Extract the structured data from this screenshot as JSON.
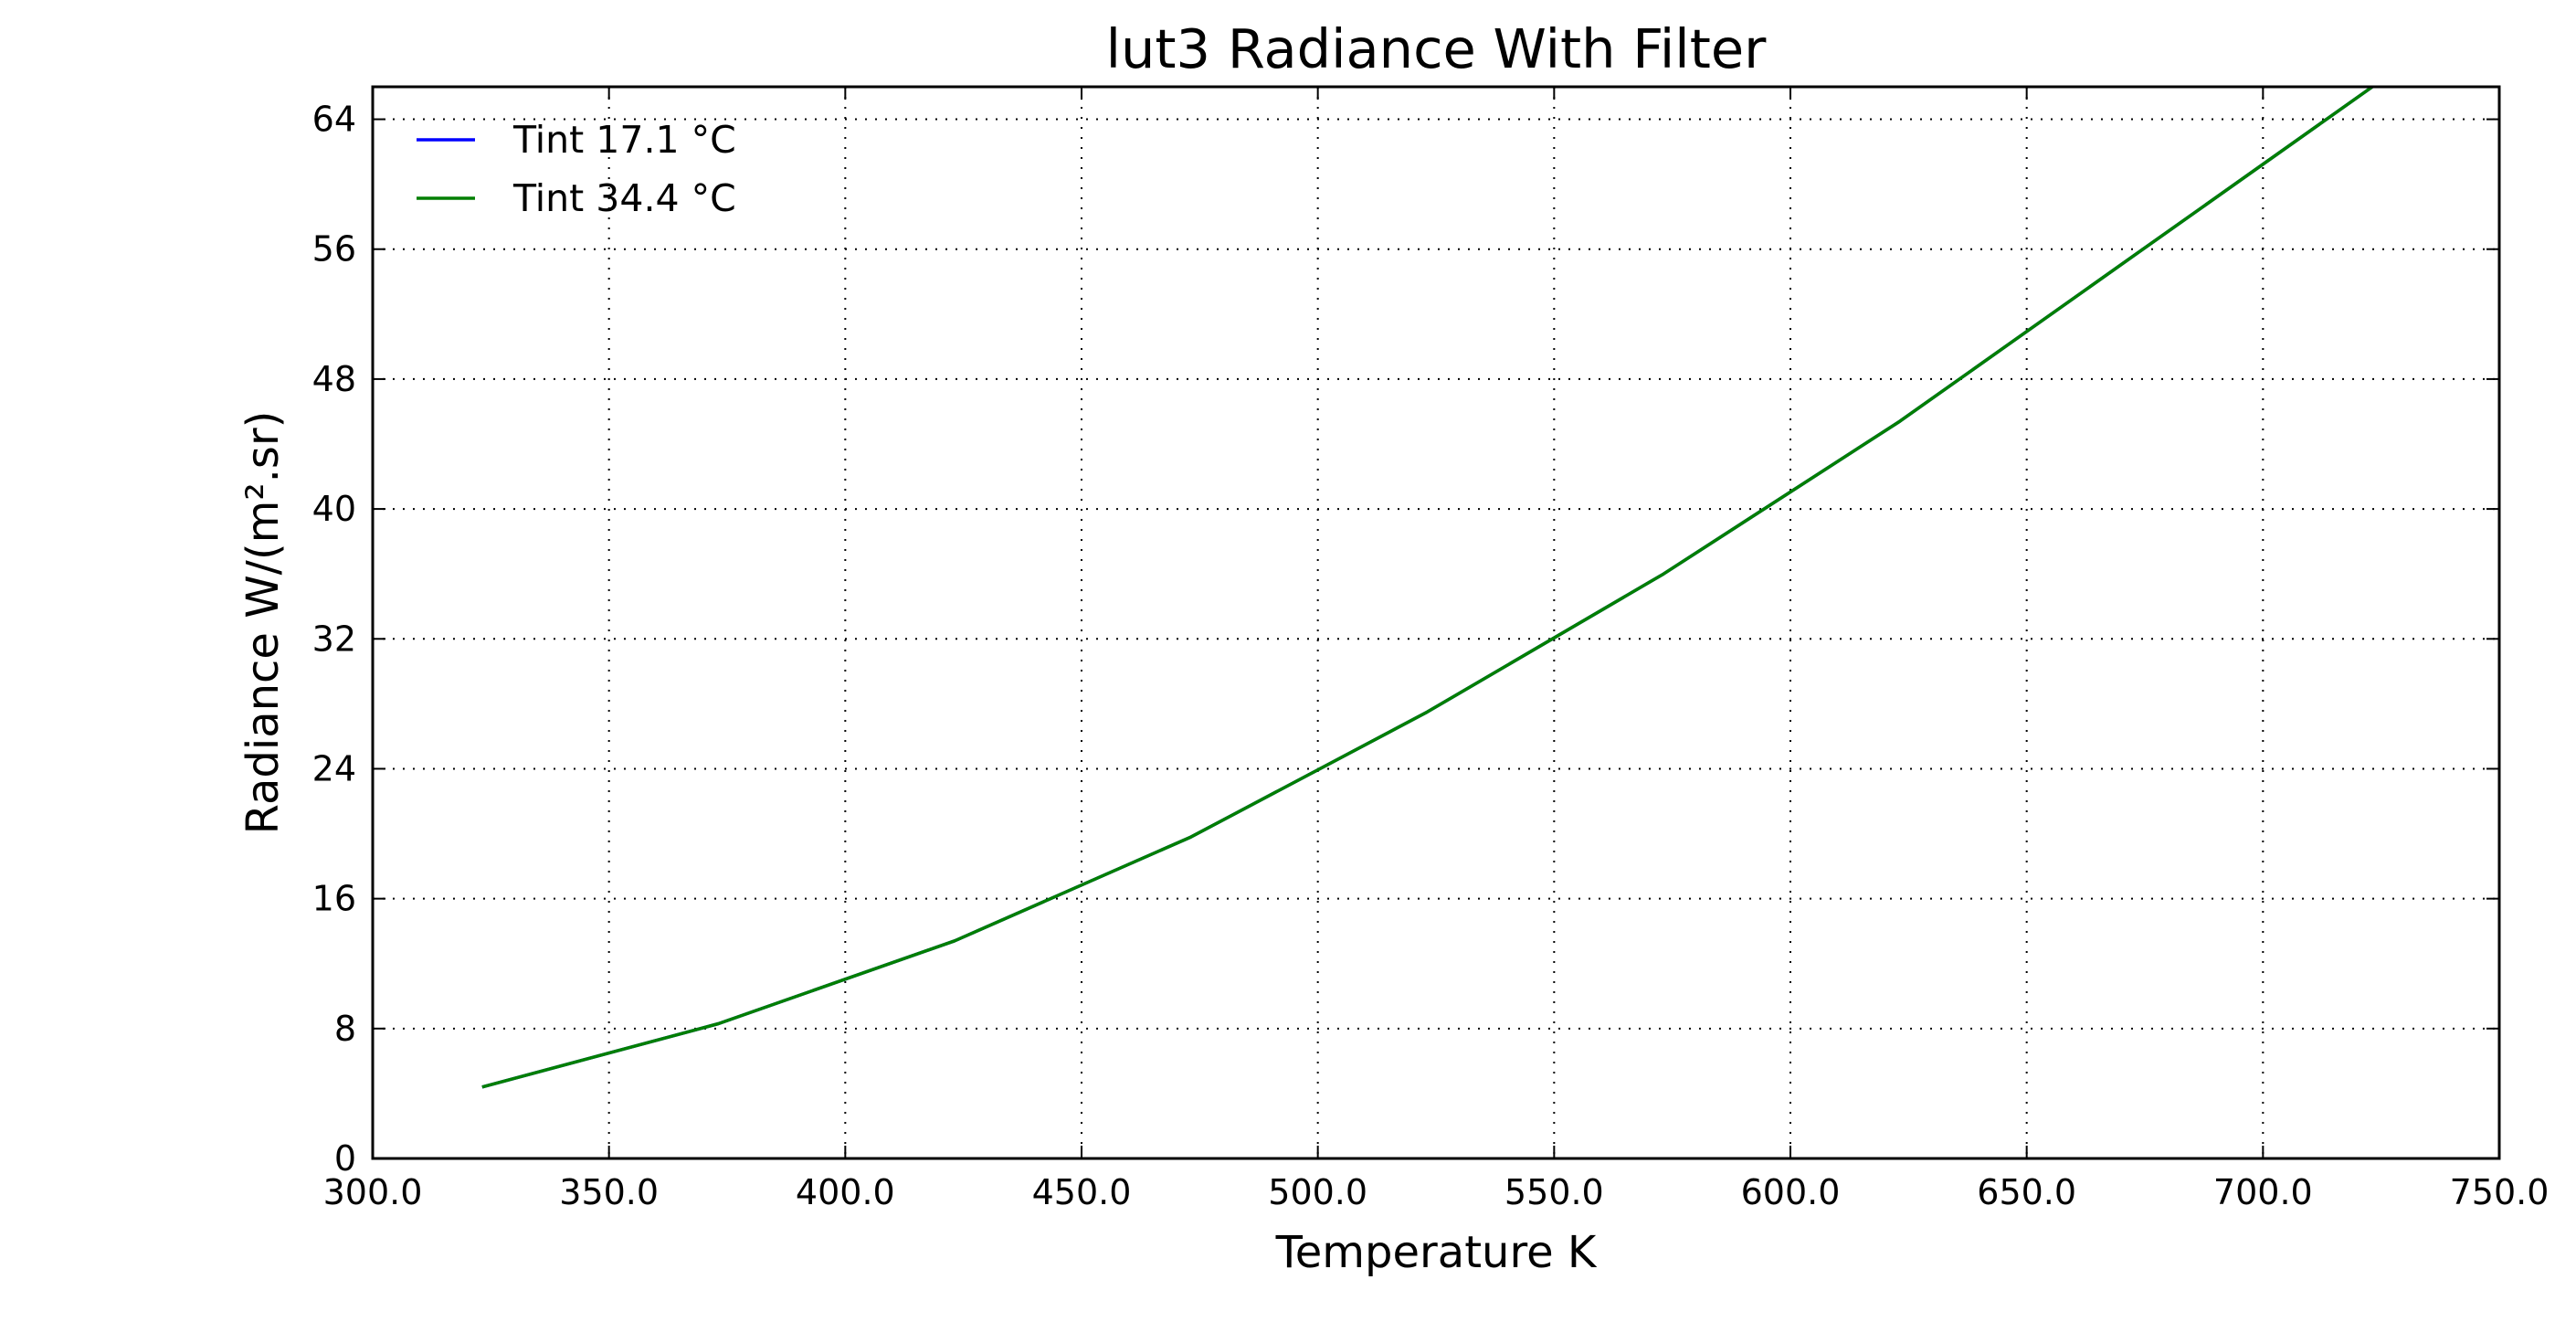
{
  "chart_data": {
    "type": "line",
    "title": "lut3 Radiance With Filter",
    "xlabel": "Temperature K",
    "ylabel": "Radiance W/(m².sr)",
    "xlim": [
      300.0,
      750.0
    ],
    "ylim": [
      0,
      66
    ],
    "x_ticks": [
      300.0,
      350.0,
      400.0,
      450.0,
      500.0,
      550.0,
      600.0,
      650.0,
      700.0,
      750.0
    ],
    "x_tick_labels": [
      "300.0",
      "350.0",
      "400.0",
      "450.0",
      "500.0",
      "550.0",
      "600.0",
      "650.0",
      "700.0",
      "750.0"
    ],
    "y_ticks": [
      0,
      8,
      16,
      24,
      32,
      40,
      48,
      56,
      64
    ],
    "y_tick_labels": [
      "0",
      "8",
      "16",
      "24",
      "32",
      "40",
      "48",
      "56",
      "64"
    ],
    "grid": true,
    "legend_position": "top-left",
    "series": [
      {
        "name": "Tint 17.1 °C",
        "color": "#0000ff",
        "x": [
          323.15,
          373.15,
          423.15,
          473.15,
          523.15,
          573.15,
          623.15,
          673.15,
          723.15
        ],
        "y": [
          4.4,
          8.3,
          13.4,
          19.8,
          27.5,
          36.0,
          45.4,
          55.7,
          66.0
        ]
      },
      {
        "name": "Tint 34.4 °C",
        "color": "#007f00",
        "x": [
          323.15,
          373.15,
          423.15,
          473.15,
          523.15,
          573.15,
          623.15,
          673.15,
          723.15
        ],
        "y": [
          4.4,
          8.3,
          13.4,
          19.8,
          27.5,
          36.0,
          45.4,
          55.7,
          66.0
        ]
      }
    ]
  }
}
